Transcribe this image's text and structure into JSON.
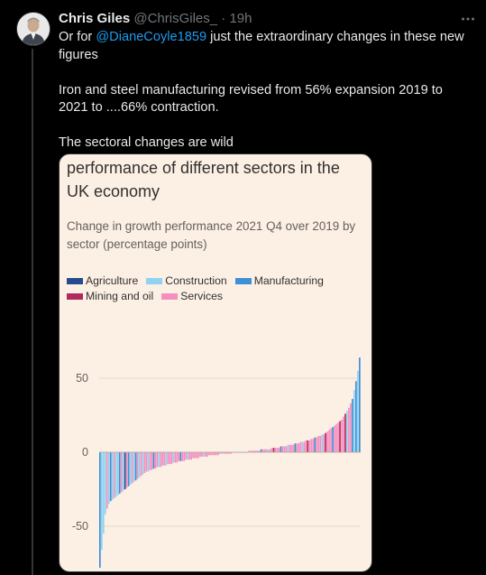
{
  "tweet": {
    "author_name": "Chris Giles",
    "author_handle": "@ChrisGiles_",
    "separator": "·",
    "time": "19h",
    "more_icon": "more-dots-icon",
    "text_line1_prefix": "Or for ",
    "mention": "@DianeCoyle1859",
    "text_line1_suffix": " just the extraordinary changes in these new figures",
    "text_para2": "Iron and steel manufacturing revised from 56% expansion 2019 to 2021 to ....66% contraction.",
    "text_para3": "The sectoral changes are wild"
  },
  "card": {
    "title": "performance of different sectors in the UK economy",
    "subtitle": "Change in growth performance 2021 Q4 over 2019 by sector (percentage points)",
    "legend": [
      {
        "label": "Agriculture",
        "color": "#264a8c"
      },
      {
        "label": "Construction",
        "color": "#8fd3f0"
      },
      {
        "label": "Manufacturing",
        "color": "#3d8fd6"
      },
      {
        "label": "Mining and oil",
        "color": "#b02a5e"
      },
      {
        "label": "Services",
        "color": "#f48fc0"
      }
    ]
  },
  "chart_data": {
    "type": "bar",
    "title": "",
    "xlabel": "",
    "ylabel": "",
    "ylim": [
      -78,
      68
    ],
    "yticks": [
      50,
      0,
      -50
    ],
    "sorted_ascending": true,
    "series_colors": {
      "Agriculture": "#264a8c",
      "Construction": "#8fd3f0",
      "Manufacturing": "#3d8fd6",
      "Mining and oil": "#b02a5e",
      "Services": "#f48fc0"
    },
    "values": [
      -78,
      -66,
      -55,
      -42,
      -38,
      -35,
      -33,
      -32,
      -31,
      -30,
      -29,
      -28,
      -27,
      -26,
      -25,
      -24,
      -23,
      -22,
      -21,
      -20,
      -19,
      -18,
      -17,
      -16,
      -15,
      -14,
      -13,
      -13,
      -12,
      -12,
      -11,
      -11,
      -10,
      -10,
      -10,
      -9,
      -9,
      -9,
      -8,
      -8,
      -8,
      -7,
      -7,
      -7,
      -6,
      -6,
      -6,
      -6,
      -5,
      -5,
      -5,
      -5,
      -4,
      -4,
      -4,
      -4,
      -3,
      -3,
      -3,
      -3,
      -3,
      -2,
      -2,
      -2,
      -2,
      -2,
      -2,
      -1,
      -1,
      -1,
      -1,
      -1,
      -1,
      -1,
      0,
      0,
      0,
      0,
      0,
      0,
      0,
      0,
      0,
      1,
      1,
      1,
      1,
      1,
      1,
      1,
      2,
      2,
      2,
      2,
      2,
      2,
      3,
      3,
      3,
      3,
      3,
      4,
      4,
      4,
      4,
      5,
      5,
      5,
      5,
      6,
      6,
      6,
      7,
      7,
      7,
      8,
      8,
      8,
      9,
      9,
      10,
      10,
      11,
      11,
      12,
      12,
      13,
      14,
      15,
      16,
      17,
      18,
      19,
      20,
      21,
      22,
      24,
      26,
      28,
      30,
      33,
      36,
      42,
      48,
      55,
      64
    ],
    "sectors": [
      "Manufacturing",
      "Construction",
      "Construction",
      "Construction",
      "Services",
      "Construction",
      "Manufacturing",
      "Construction",
      "Services",
      "Construction",
      "Construction",
      "Manufacturing",
      "Services",
      "Construction",
      "Agriculture",
      "Services",
      "Manufacturing",
      "Construction",
      "Services",
      "Construction",
      "Manufacturing",
      "Services",
      "Construction",
      "Services",
      "Construction",
      "Services",
      "Services",
      "Construction",
      "Services",
      "Services",
      "Manufacturing",
      "Services",
      "Services",
      "Construction",
      "Services",
      "Services",
      "Services",
      "Construction",
      "Services",
      "Services",
      "Services",
      "Construction",
      "Services",
      "Services",
      "Services",
      "Manufacturing",
      "Services",
      "Services",
      "Services",
      "Construction",
      "Services",
      "Services",
      "Services",
      "Services",
      "Services",
      "Services",
      "Services",
      "Services",
      "Construction",
      "Services",
      "Services",
      "Services",
      "Services",
      "Services",
      "Services",
      "Services",
      "Services",
      "Services",
      "Construction",
      "Services",
      "Services",
      "Services",
      "Services",
      "Services",
      "Services",
      "Services",
      "Services",
      "Services",
      "Services",
      "Manufacturing",
      "Services",
      "Services",
      "Services",
      "Construction",
      "Services",
      "Services",
      "Services",
      "Services",
      "Services",
      "Services",
      "Manufacturing",
      "Services",
      "Services",
      "Services",
      "Construction",
      "Services",
      "Services",
      "Mining and oil",
      "Services",
      "Services",
      "Services",
      "Manufacturing",
      "Services",
      "Services",
      "Services",
      "Construction",
      "Services",
      "Services",
      "Services",
      "Manufacturing",
      "Services",
      "Services",
      "Services",
      "Construction",
      "Services",
      "Services",
      "Mining and oil",
      "Services",
      "Services",
      "Services",
      "Manufacturing",
      "Services",
      "Services",
      "Services",
      "Construction",
      "Services",
      "Mining and oil",
      "Services",
      "Services",
      "Services",
      "Manufacturing",
      "Services",
      "Services",
      "Services",
      "Mining and oil",
      "Services",
      "Services",
      "Mining and oil",
      "Construction",
      "Services",
      "Services",
      "Manufacturing",
      "Construction",
      "Manufacturing",
      "Construction",
      "Manufacturing"
    ]
  }
}
